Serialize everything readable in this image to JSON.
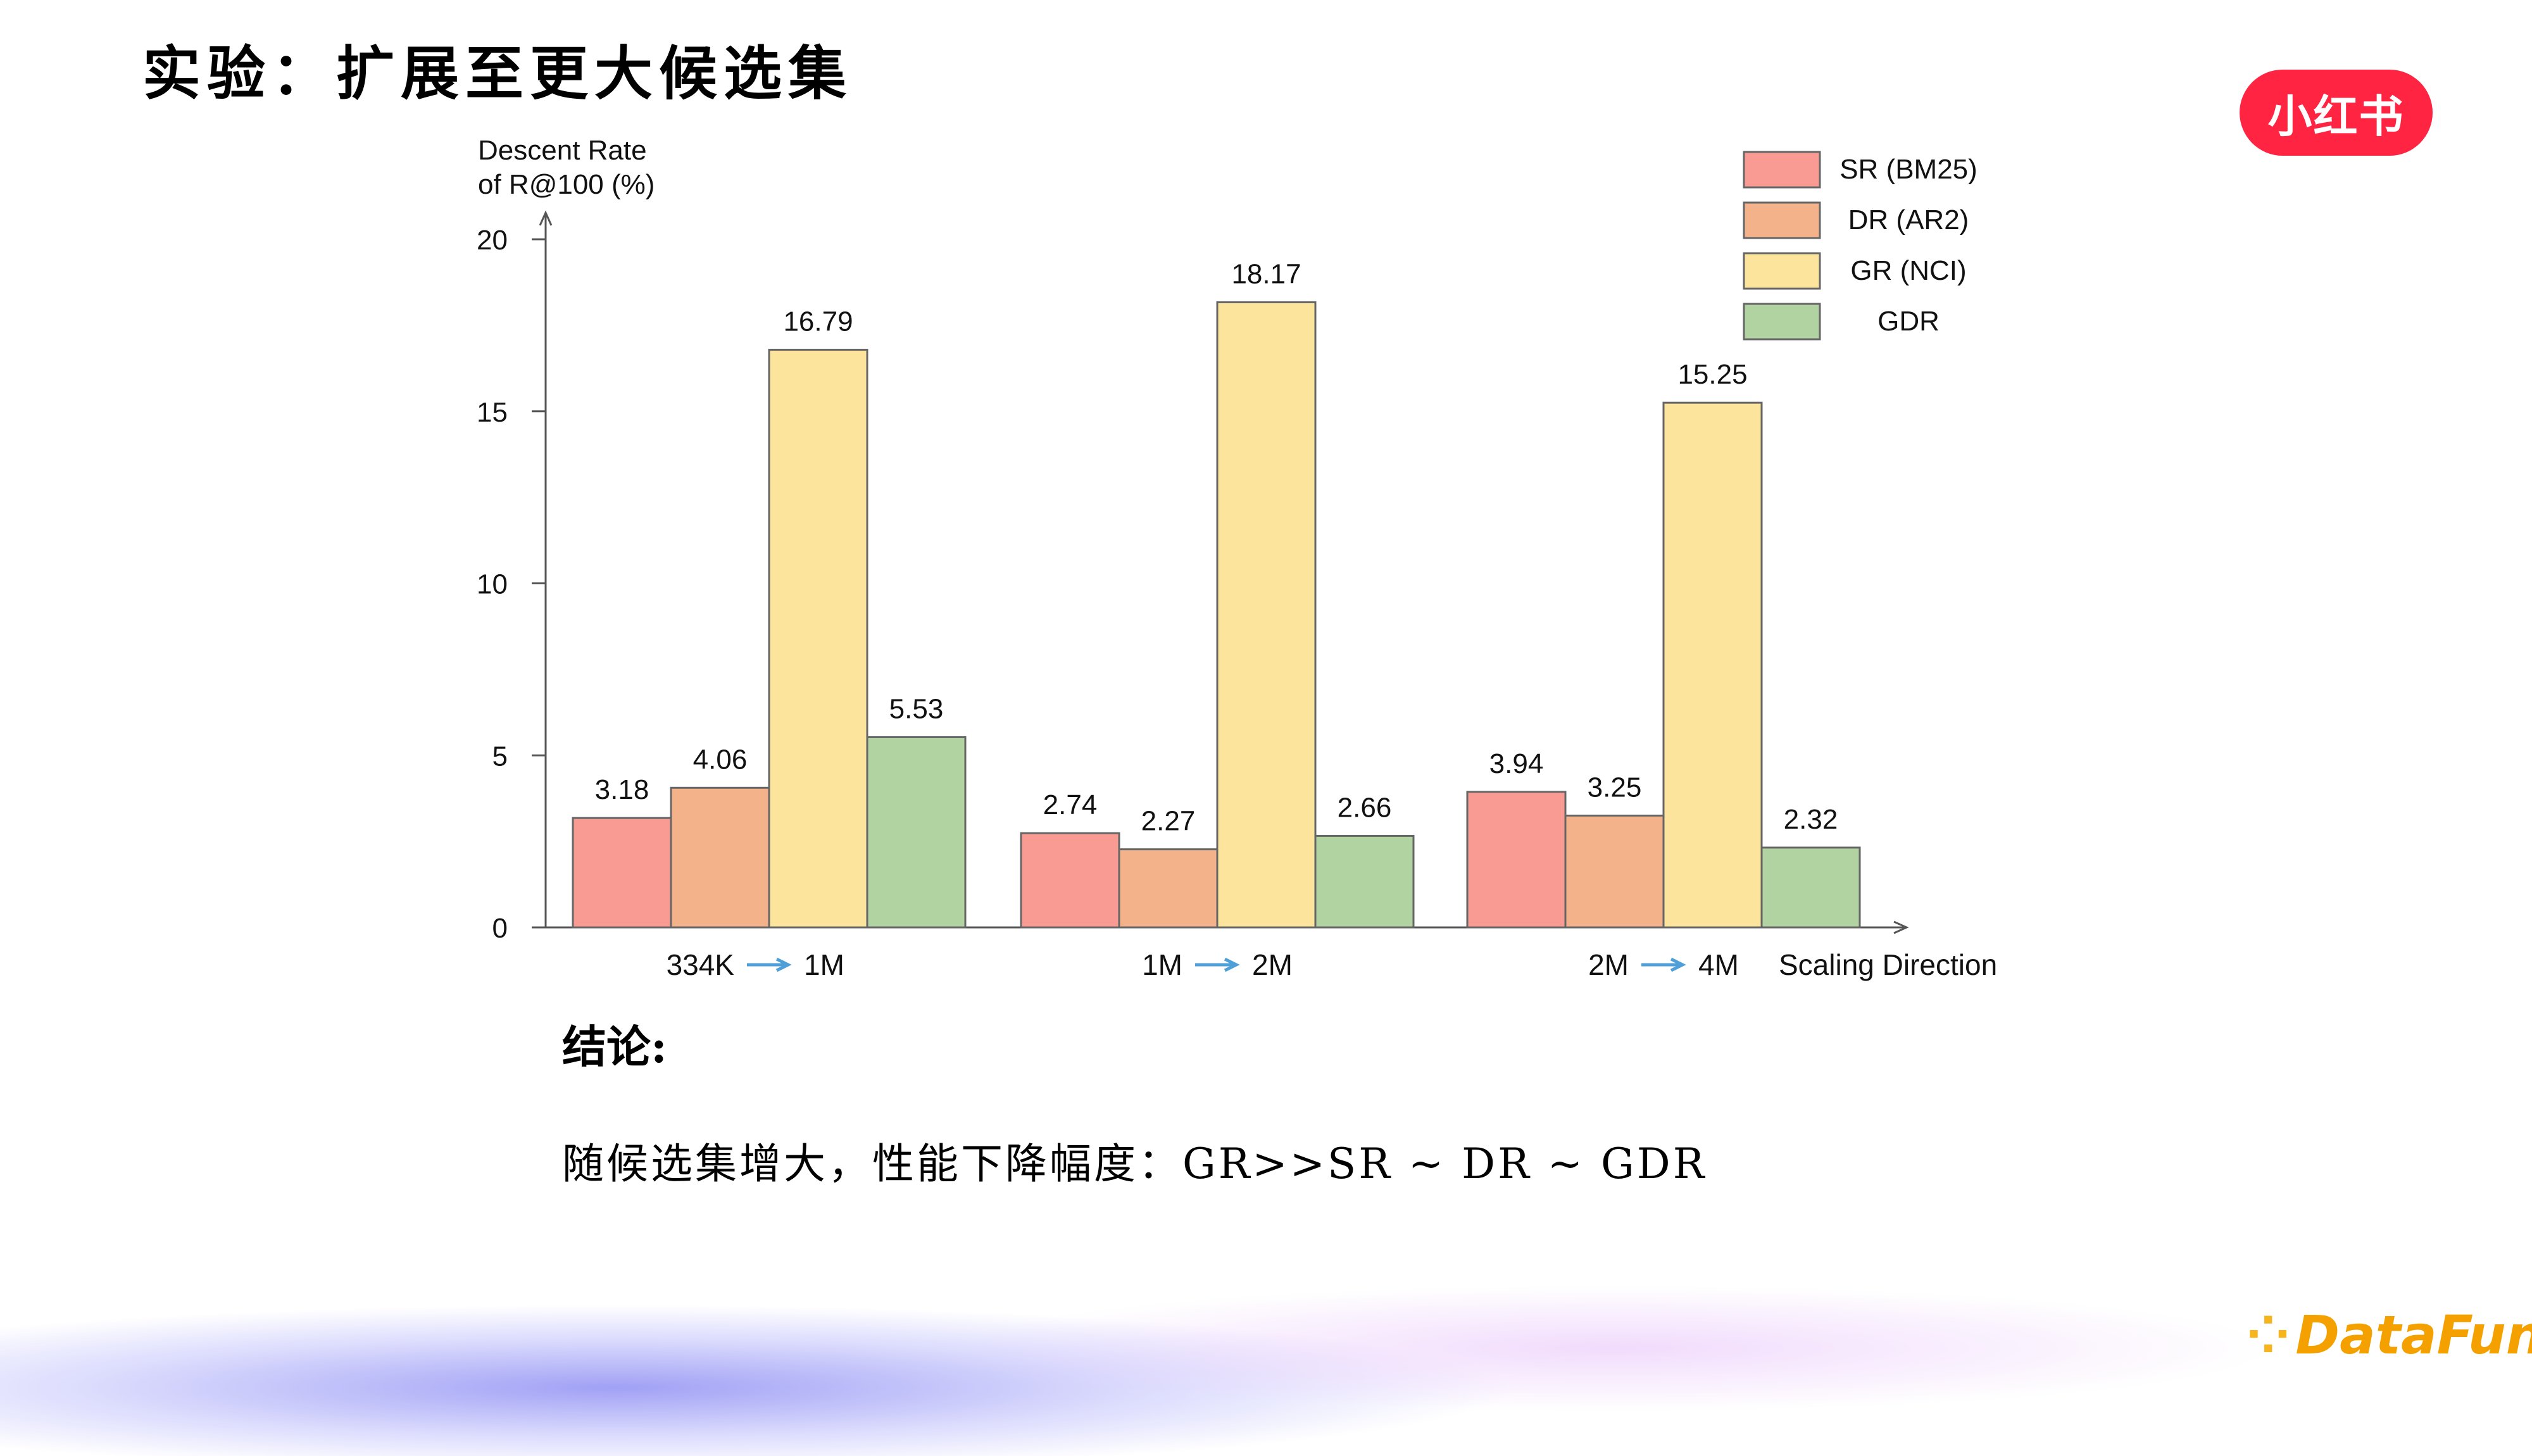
{
  "slide": {
    "title": "实验：扩展至更大候选集",
    "brand_badge": "小红书",
    "conclusion_heading": "结论:",
    "conclusion_text": "随候选集增大，性能下降幅度：GR>>SR ~ DR ~ GDR",
    "footer_logo": "DataFun."
  },
  "colors": {
    "sr": "#f99b92",
    "dr": "#f3b28a",
    "gr": "#fde49c",
    "gdr": "#b1d2a1",
    "bar_stroke": "#666666",
    "arrow": "#4f9fd8",
    "brand": "#ff2442",
    "footer": "#f4a100"
  },
  "chart_data": {
    "type": "bar",
    "ylabel_line1": "Descent Rate",
    "ylabel_line2": "of R@100 (%)",
    "xlabel": "Scaling Direction",
    "ylim": [
      0,
      20
    ],
    "yticks": [
      0,
      5,
      10,
      15,
      20
    ],
    "categories": [
      {
        "from": "334K",
        "to": "1M"
      },
      {
        "from": "1M",
        "to": "2M"
      },
      {
        "from": "2M",
        "to": "4M"
      }
    ],
    "series": [
      {
        "name": "SR (BM25)",
        "color_key": "sr",
        "values": [
          3.18,
          2.74,
          3.94
        ]
      },
      {
        "name": "DR (AR2)",
        "color_key": "dr",
        "values": [
          4.06,
          2.27,
          3.25
        ]
      },
      {
        "name": "GR (NCI)",
        "color_key": "gr",
        "values": [
          16.79,
          18.17,
          15.25
        ]
      },
      {
        "name": "GDR",
        "color_key": "gdr",
        "values": [
          5.53,
          2.66,
          2.32
        ]
      }
    ],
    "legend_position": "top-right",
    "grid": false
  }
}
